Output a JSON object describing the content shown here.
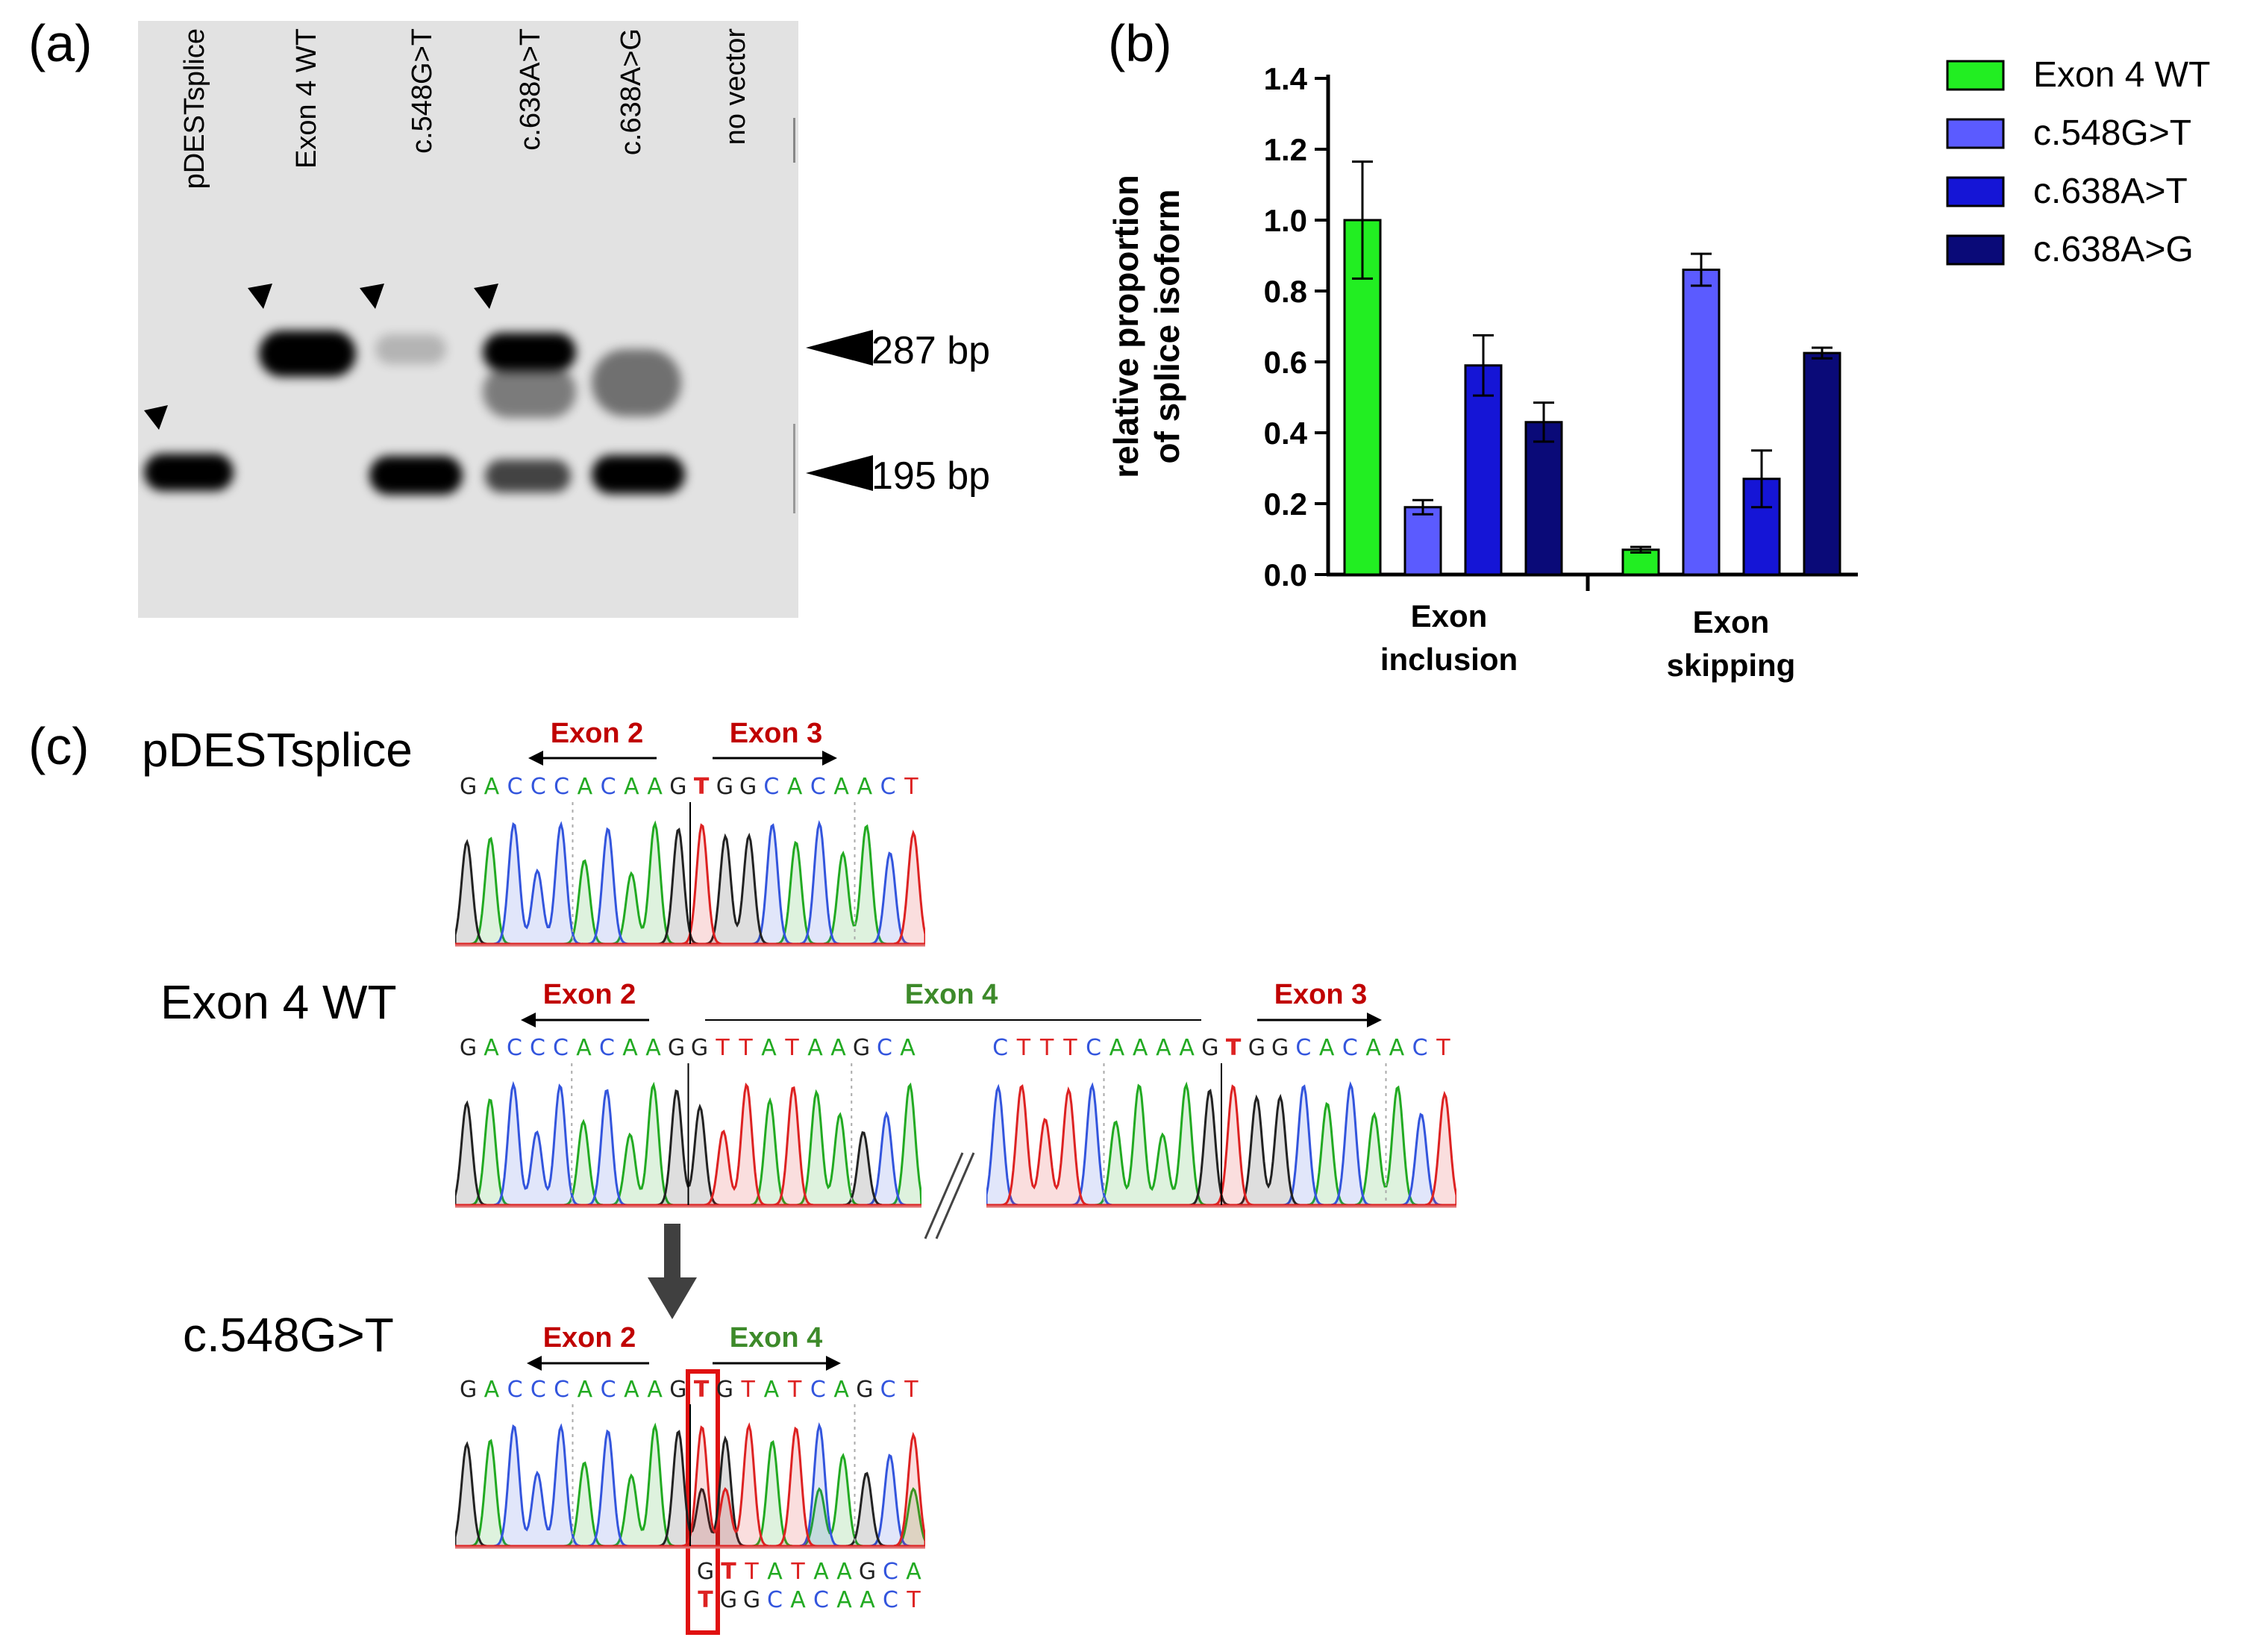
{
  "panels": {
    "a": "(a)",
    "b": "(b)",
    "c": "(c)"
  },
  "gel": {
    "lanes": [
      "pDESTsplice",
      "Exon 4 WT",
      "c.548G>T",
      "c.638A>T",
      "c.638A>G",
      "no vector"
    ],
    "size_markers": [
      "287 bp",
      "195 bp"
    ]
  },
  "chart_data": {
    "type": "bar",
    "categories": [
      "Exon inclusion",
      "Exon skipping"
    ],
    "category_lines": [
      [
        "Exon",
        "inclusion"
      ],
      [
        "Exon",
        "skipping"
      ]
    ],
    "ylabel": "relative proportion of splice isoform",
    "ylabel_lines": [
      "relative proportion",
      "of splice isoform"
    ],
    "ylim": [
      0,
      1.4
    ],
    "yticks": [
      "0.0",
      "0.2",
      "0.4",
      "0.6",
      "0.8",
      "1.0",
      "1.2",
      "1.4"
    ],
    "legend_position": "top-right",
    "series": [
      {
        "name": "Exon 4 WT",
        "color": "#22ee22",
        "values": [
          1.0,
          0.07
        ],
        "errors": [
          0.165,
          0.008
        ]
      },
      {
        "name": "c.548G>T",
        "color": "#5b5bff",
        "values": [
          0.19,
          0.86
        ],
        "errors": [
          0.02,
          0.045
        ]
      },
      {
        "name": "c.638A>T",
        "color": "#1515d6",
        "values": [
          0.59,
          0.27
        ],
        "errors": [
          0.085,
          0.08
        ]
      },
      {
        "name": "c.638A>G",
        "color": "#0a0a78",
        "values": [
          0.43,
          0.625
        ],
        "errors": [
          0.055,
          0.015
        ]
      }
    ]
  },
  "sequencing": {
    "samples": [
      {
        "name": "pDESTsplice",
        "labels": {
          "left": "Exon 2",
          "right": "Exon 3"
        },
        "sequence": "GACCCACAAGTGGCACAACT"
      },
      {
        "name": "Exon 4 WT",
        "labels": {
          "left": "Exon 2",
          "middle": "Exon 4",
          "right": "Exon 3"
        },
        "sequence_left": "GACCCACAAGGTTATAAGCA",
        "sequence_right": "CTTTCAAAAGTGGCACAACT"
      },
      {
        "name": "c.548G>T",
        "labels": {
          "left": "Exon 2",
          "right": "Exon 4"
        },
        "sequence": "GACCCACAAGTGTATCAGCT",
        "alt_sequence_1": "GTTATAAGCA",
        "alt_sequence_2": "TGGCACAACT"
      }
    ]
  },
  "colors": {
    "A": "#22aa22",
    "C": "#3355dd",
    "G": "#222222",
    "T": "#dd2222",
    "exon_red": "#c00000",
    "exon_green": "#3d8a2a"
  }
}
